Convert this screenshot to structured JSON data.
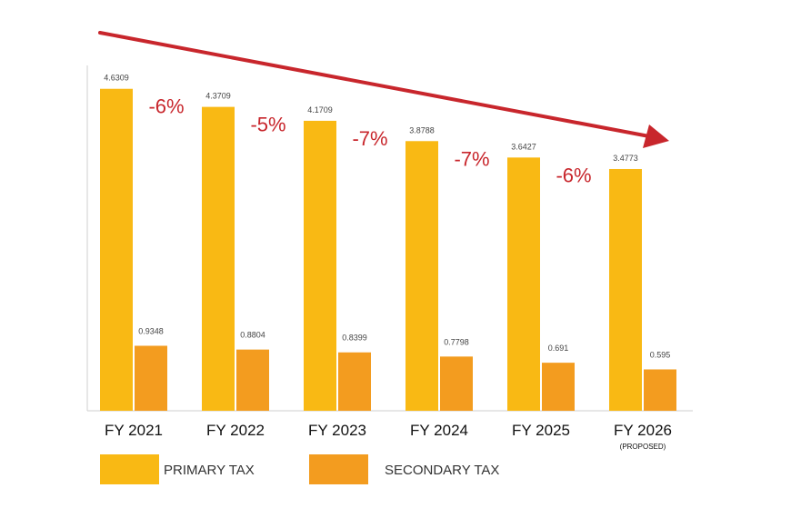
{
  "chart_data": {
    "type": "bar",
    "categories": [
      "FY 2021",
      "FY 2022",
      "FY 2023",
      "FY 2024",
      "FY 2025",
      "FY 2026"
    ],
    "category_notes": [
      "",
      "",
      "",
      "",
      "",
      "(PROPOSED)"
    ],
    "series": [
      {
        "name": "PRIMARY TAX",
        "values": [
          4.6309,
          4.3709,
          4.1709,
          3.8788,
          3.6427,
          3.4773
        ],
        "labels": [
          "4.6309",
          "4.3709",
          "4.1709",
          "3.8788",
          "3.6427",
          "3.4773"
        ],
        "color": "#f9b914"
      },
      {
        "name": "SECONDARY TAX",
        "values": [
          0.9348,
          0.8804,
          0.8399,
          0.7798,
          0.691,
          0.595
        ],
        "labels": [
          "0.9348",
          "0.8804",
          "0.8399",
          "0.7798",
          "0.691",
          "0.595"
        ],
        "color": "#f39c1f"
      }
    ],
    "changes": [
      "-6%",
      "-5%",
      "-7%",
      "-7%",
      "-6%"
    ],
    "trend_arrow_color": "#c8262c",
    "ylim": [
      0,
      5
    ],
    "grid": false,
    "legend": "bottom-left"
  }
}
